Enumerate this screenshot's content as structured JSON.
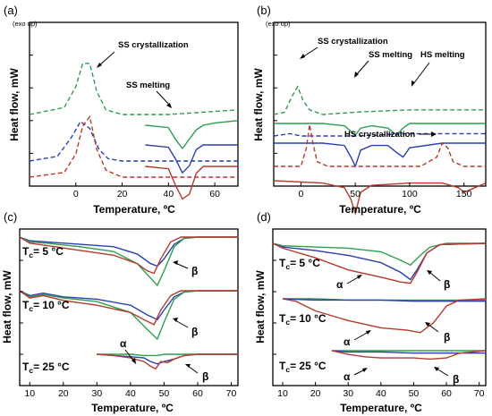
{
  "chart_data": [
    {
      "type": "line",
      "panel_label": "(a)",
      "xlabel": "Temperature, ºC",
      "ylabel": "Heat flow, mW",
      "exo_note": "(exo up)",
      "xlim": [
        -20,
        70
      ],
      "xticks": [
        0,
        20,
        40,
        60
      ],
      "annotations": [
        {
          "text": "SS crystallization",
          "x": 25
        },
        {
          "text": "SS melting",
          "x": 45
        }
      ],
      "series": [
        {
          "color": "#2e9e4f",
          "style": "dashed",
          "offset": 80,
          "x": [
            -20,
            -5,
            0,
            3,
            6,
            9,
            13,
            20,
            40,
            70
          ],
          "y": [
            0,
            3,
            12,
            22,
            22,
            10,
            2,
            0,
            0,
            2
          ]
        },
        {
          "color": "#2e9e4f",
          "style": "solid",
          "offset": 68,
          "x": [
            30,
            40,
            43,
            46,
            49,
            52,
            55,
            60,
            70
          ],
          "y": [
            0,
            -1,
            -6,
            -10,
            -6,
            -2,
            0,
            1,
            2
          ]
        },
        {
          "color": "#2a3fb0",
          "style": "dashed",
          "offset": 28,
          "x": [
            -20,
            -8,
            -2,
            2,
            6,
            10,
            14,
            20,
            40,
            70
          ],
          "y": [
            0,
            2,
            10,
            17,
            14,
            5,
            1,
            0,
            0,
            0
          ]
        },
        {
          "color": "#2a3fb0",
          "style": "solid",
          "offset": 46,
          "x": [
            30,
            40,
            43,
            46,
            49,
            52,
            55,
            60,
            70
          ],
          "y": [
            0,
            -1,
            -6,
            -12,
            -9,
            -2,
            0,
            0,
            0
          ]
        },
        {
          "color": "#b43a2a",
          "style": "dashed",
          "offset": 10,
          "x": [
            -20,
            -5,
            0,
            3,
            6,
            9,
            13,
            20,
            40,
            70
          ],
          "y": [
            0,
            2,
            10,
            22,
            26,
            12,
            3,
            0,
            0,
            0
          ]
        },
        {
          "color": "#b43a2a",
          "style": "solid",
          "offset": 22,
          "x": [
            30,
            40,
            43,
            46,
            49,
            52,
            55,
            60,
            70
          ],
          "y": [
            0,
            -1,
            -8,
            -14,
            -12,
            -3,
            0,
            0,
            0
          ]
        }
      ]
    },
    {
      "type": "line",
      "panel_label": "(b)",
      "xlabel": "Temperature, ºC",
      "ylabel": "Heat flow, mW",
      "exo_note": "(exo up)",
      "xlim": [
        -25,
        170
      ],
      "xticks": [
        0,
        50,
        100,
        150
      ],
      "annotations": [
        {
          "text": "SS crystallization",
          "x": 0
        },
        {
          "text": "SS melting",
          "x": 50
        },
        {
          "text": "HS melting",
          "x": 95
        },
        {
          "text": "HS crystallization",
          "x": 115
        }
      ],
      "series": [
        {
          "color": "#2e9e4f",
          "style": "dashed",
          "offset": 80,
          "x": [
            -25,
            -15,
            -8,
            -3,
            2,
            8,
            20,
            50,
            100,
            170
          ],
          "y": [
            0,
            1,
            8,
            12,
            6,
            2,
            0,
            1,
            2,
            2
          ]
        },
        {
          "color": "#2e9e4f",
          "style": "solid",
          "offset": 70,
          "x": [
            -25,
            20,
            40,
            50,
            55,
            65,
            80,
            88,
            94,
            100,
            130,
            170
          ],
          "y": [
            0,
            0,
            -1,
            -5,
            -2,
            -1,
            -2,
            -5,
            -2,
            0,
            0,
            0
          ]
        },
        {
          "color": "#2a3fb0",
          "style": "dashed",
          "offset": 56,
          "x": [
            -25,
            -10,
            0,
            50,
            100,
            170
          ],
          "y": [
            0,
            1,
            0,
            0,
            1,
            1
          ]
        },
        {
          "color": "#2a3fb0",
          "style": "solid",
          "offset": 48,
          "x": [
            -25,
            20,
            40,
            46,
            50,
            55,
            65,
            80,
            88,
            94,
            100,
            130,
            170
          ],
          "y": [
            0,
            0,
            -1,
            -6,
            -10,
            -3,
            -1,
            -1,
            -4,
            -6,
            -2,
            0,
            0
          ]
        },
        {
          "color": "#b43a2a",
          "style": "dashed",
          "offset": 22,
          "x": [
            -25,
            0,
            5,
            8,
            11,
            15,
            25,
            60,
            110,
            125,
            130,
            135,
            140,
            150,
            170
          ],
          "y": [
            0,
            0,
            8,
            18,
            10,
            2,
            0,
            0,
            0,
            4,
            10,
            8,
            2,
            0,
            0
          ]
        },
        {
          "color": "#b43a2a",
          "style": "solid",
          "offset": 6,
          "x": [
            -25,
            20,
            40,
            46,
            50,
            55,
            65,
            100,
            130,
            145,
            150,
            160,
            170
          ],
          "y": [
            0,
            -1,
            -3,
            -8,
            -14,
            -5,
            -2,
            -1,
            -1,
            -3,
            -5,
            -3,
            -1
          ]
        }
      ]
    },
    {
      "type": "line",
      "panel_label": "(c)",
      "xlabel": "Temperature, ºC",
      "ylabel": "Heat flow, mW",
      "xlim": [
        7,
        72
      ],
      "xticks": [
        10,
        20,
        30,
        40,
        50,
        60,
        70
      ],
      "annotations": [
        {
          "text": "T",
          "sub": "c",
          "value": "= 5 °C"
        },
        {
          "text": "T",
          "sub": "c",
          "value": "= 10 °C"
        },
        {
          "text": "T",
          "sub": "c",
          "value": "= 25 °C"
        },
        {
          "text": "β"
        },
        {
          "text": "β"
        },
        {
          "text": "α"
        },
        {
          "text": "β"
        }
      ],
      "groups": [
        {
          "tc": "= 5 °C",
          "series": [
            {
              "color": "#2a3fb0",
              "x": [
                7,
                10,
                15,
                25,
                35,
                42,
                46,
                48,
                50,
                53,
                56,
                60,
                72
              ],
              "y": [
                0,
                -3,
                -4,
                -6,
                -8,
                -14,
                -22,
                -24,
                -18,
                -6,
                -1,
                0,
                0
              ]
            },
            {
              "color": "#2e9e4f",
              "x": [
                7,
                10,
                15,
                25,
                35,
                42,
                46,
                48,
                50,
                53,
                56,
                60,
                72
              ],
              "y": [
                0,
                -4,
                -5,
                -8,
                -12,
                -22,
                -34,
                -40,
                -28,
                -8,
                -1,
                0,
                0
              ]
            },
            {
              "color": "#b43a2a",
              "x": [
                7,
                10,
                15,
                25,
                35,
                42,
                45,
                47,
                49,
                52,
                55,
                60,
                72
              ],
              "y": [
                0,
                -5,
                -7,
                -11,
                -15,
                -22,
                -28,
                -30,
                -18,
                -4,
                0,
                0,
                0
              ]
            }
          ]
        },
        {
          "tc": "= 10 °C",
          "series": [
            {
              "color": "#2a3fb0",
              "x": [
                7,
                10,
                14,
                20,
                30,
                40,
                45,
                48,
                50,
                53,
                56,
                60,
                72
              ],
              "y": [
                0,
                -4,
                -2,
                -5,
                -7,
                -12,
                -20,
                -24,
                -16,
                -5,
                -1,
                0,
                0
              ]
            },
            {
              "color": "#2e9e4f",
              "x": [
                7,
                10,
                14,
                20,
                30,
                40,
                45,
                48,
                50,
                53,
                56,
                60,
                72
              ],
              "y": [
                0,
                -5,
                -3,
                -6,
                -9,
                -18,
                -32,
                -40,
                -26,
                -7,
                -1,
                0,
                0
              ]
            },
            {
              "color": "#b43a2a",
              "x": [
                7,
                10,
                14,
                20,
                30,
                40,
                44,
                47,
                49,
                52,
                55,
                60,
                72
              ],
              "y": [
                0,
                -6,
                -4,
                -8,
                -12,
                -18,
                -24,
                -28,
                -16,
                -4,
                0,
                0,
                0
              ]
            }
          ]
        },
        {
          "tc": "= 25 °C",
          "series": [
            {
              "color": "#2a3fb0",
              "x": [
                30,
                35,
                40,
                44,
                46,
                48,
                50,
                53,
                56,
                60,
                72
              ],
              "y": [
                0,
                -1,
                -2,
                -3,
                -6,
                -8,
                -6,
                -4,
                -1,
                0,
                0
              ]
            },
            {
              "color": "#2e9e4f",
              "x": [
                30,
                35,
                40,
                44,
                46,
                48,
                50,
                53,
                56,
                60,
                72
              ],
              "y": [
                0,
                0,
                0,
                -1,
                -1,
                -1,
                0,
                0,
                0,
                0,
                0
              ]
            },
            {
              "color": "#b43a2a",
              "x": [
                30,
                35,
                40,
                44,
                46,
                47.5,
                49,
                51,
                53,
                56,
                60,
                72
              ],
              "y": [
                0,
                -1,
                -3,
                -6,
                -10,
                -12,
                -6,
                -7,
                -4,
                -1,
                0,
                0
              ]
            }
          ]
        }
      ]
    },
    {
      "type": "line",
      "panel_label": "(d)",
      "xlabel": "Temperature, ºC",
      "ylabel": "Heat flow, mW",
      "xlim": [
        7,
        72
      ],
      "xticks": [
        10,
        20,
        30,
        40,
        50,
        60,
        70
      ],
      "annotations": [
        {
          "text": "T",
          "sub": "c",
          "value": "= 5 °C"
        },
        {
          "text": "T",
          "sub": "c",
          "value": "= 10 °C"
        },
        {
          "text": "T",
          "sub": "c",
          "value": "= 25 °C"
        },
        {
          "text": "α"
        },
        {
          "text": "β"
        },
        {
          "text": "α"
        },
        {
          "text": "β"
        },
        {
          "text": "α"
        },
        {
          "text": "β"
        }
      ],
      "groups": [
        {
          "tc": "= 5 °C",
          "series": [
            {
              "color": "#2e9e4f",
              "x": [
                7,
                10,
                20,
                30,
                40,
                46,
                49,
                52,
                55,
                60,
                72
              ],
              "y": [
                0,
                -2,
                -3,
                -4,
                -7,
                -14,
                -18,
                -10,
                -3,
                0,
                0
              ]
            },
            {
              "color": "#2a3fb0",
              "x": [
                7,
                10,
                20,
                30,
                40,
                46,
                49,
                51,
                54,
                58,
                72
              ],
              "y": [
                0,
                -3,
                -6,
                -10,
                -16,
                -24,
                -30,
                -22,
                -8,
                -1,
                0
              ]
            },
            {
              "color": "#b43a2a",
              "x": [
                7,
                10,
                20,
                30,
                40,
                46,
                49,
                51,
                54,
                58,
                72
              ],
              "y": [
                0,
                -4,
                -12,
                -22,
                -28,
                -32,
                -33,
                -24,
                -8,
                -1,
                0
              ]
            }
          ]
        },
        {
          "tc": "= 10 °C",
          "series": [
            {
              "color": "#2e9e4f",
              "x": [
                10,
                20,
                30,
                40,
                50,
                60,
                72
              ],
              "y": [
                0,
                0,
                -1,
                -1,
                -1,
                -1,
                -1
              ]
            },
            {
              "color": "#2a3fb0",
              "x": [
                10,
                20,
                30,
                40,
                50,
                60,
                72
              ],
              "y": [
                0,
                -1,
                -1,
                -1,
                -2,
                -2,
                -2
              ]
            },
            {
              "color": "#b43a2a",
              "x": [
                10,
                14,
                20,
                30,
                40,
                48,
                52,
                56,
                60,
                64,
                72
              ],
              "y": [
                0,
                -2,
                -10,
                -18,
                -24,
                -26,
                -28,
                -20,
                -6,
                -1,
                0
              ]
            }
          ]
        },
        {
          "tc": "= 25 °C",
          "series": [
            {
              "color": "#2e9e4f",
              "x": [
                25,
                30,
                40,
                50,
                60,
                72
              ],
              "y": [
                0,
                0,
                0,
                0,
                0,
                0
              ]
            },
            {
              "color": "#2a3fb0",
              "x": [
                25,
                30,
                40,
                50,
                60,
                72
              ],
              "y": [
                0,
                -1,
                -1,
                -2,
                -2,
                -2
              ]
            },
            {
              "color": "#b43a2a",
              "x": [
                25,
                30,
                35,
                40,
                45,
                50,
                55,
                60,
                64,
                72
              ],
              "y": [
                0,
                -3,
                -5,
                -6,
                -6,
                -6,
                -7,
                -6,
                -2,
                0
              ]
            }
          ]
        }
      ]
    }
  ]
}
